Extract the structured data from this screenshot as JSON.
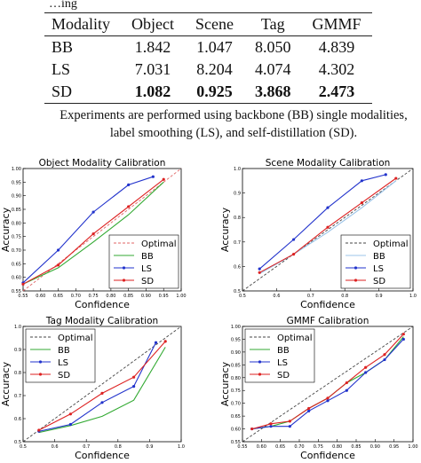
{
  "caption_top": "…ing",
  "table": {
    "headers": [
      "Modality",
      "Object",
      "Scene",
      "Tag",
      "GMMF"
    ],
    "rows": [
      {
        "cells": [
          "BB",
          "1.842",
          "1.047",
          "8.050",
          "4.839"
        ],
        "bold": false
      },
      {
        "cells": [
          "LS",
          "7.031",
          "8.204",
          "4.074",
          "4.302"
        ],
        "bold": false
      },
      {
        "cells": [
          "SD",
          "1.082",
          "0.925",
          "3.868",
          "2.473"
        ],
        "bold": true
      }
    ]
  },
  "caption": "Experiments are performed using backbone (BB) single modalities, label smoothing (LS), and self-distillation (SD).",
  "chart_data": [
    {
      "type": "line",
      "title": "Object Modality Calibration",
      "xlabel": "Confidence",
      "ylabel": "Accuracy",
      "xlim": [
        0.55,
        1.0
      ],
      "ylim": [
        0.55,
        1.0
      ],
      "xticks": [
        "0.55",
        "0.60",
        "0.65",
        "0.70",
        "0.75",
        "0.80",
        "0.85",
        "0.90",
        "0.95",
        "1.00"
      ],
      "yticks": [
        "0.55",
        "0.60",
        "0.65",
        "0.70",
        "0.75",
        "0.80",
        "0.85",
        "0.90",
        "0.95",
        "1.00"
      ],
      "legend_position": "lower-right",
      "series": [
        {
          "name": "Optimal",
          "color": "#e06666",
          "style": "dashed",
          "x": [
            0.55,
            1.0
          ],
          "y": [
            0.55,
            1.0
          ]
        },
        {
          "name": "BB",
          "color": "#33aa33",
          "style": "solid",
          "x": [
            0.55,
            0.65,
            0.75,
            0.85,
            0.95
          ],
          "y": [
            0.575,
            0.635,
            0.73,
            0.83,
            0.95
          ]
        },
        {
          "name": "LS",
          "color": "#2233cc",
          "style": "marker",
          "x": [
            0.55,
            0.65,
            0.75,
            0.85,
            0.92
          ],
          "y": [
            0.58,
            0.7,
            0.84,
            0.94,
            0.97
          ]
        },
        {
          "name": "SD",
          "color": "#dd2222",
          "style": "marker",
          "x": [
            0.55,
            0.65,
            0.75,
            0.85,
            0.95
          ],
          "y": [
            0.575,
            0.645,
            0.76,
            0.86,
            0.96
          ]
        }
      ]
    },
    {
      "type": "line",
      "title": "Scene Modality Calibration",
      "xlabel": "Confidence",
      "ylabel": "Accuracy",
      "xlim": [
        0.5,
        1.0
      ],
      "ylim": [
        0.5,
        1.0
      ],
      "xticks": [
        "0.5",
        "0.6",
        "0.7",
        "0.8",
        "0.9",
        "1.0"
      ],
      "yticks": [
        "0.5",
        "0.6",
        "0.7",
        "0.8",
        "0.9",
        "1.0"
      ],
      "legend_position": "lower-right",
      "series": [
        {
          "name": "Optimal",
          "color": "#444444",
          "style": "dashed",
          "x": [
            0.5,
            1.0
          ],
          "y": [
            0.5,
            1.0
          ]
        },
        {
          "name": "BB",
          "color": "#9bc4e8",
          "style": "solid",
          "x": [
            0.55,
            0.65,
            0.75,
            0.85,
            0.95
          ],
          "y": [
            0.57,
            0.65,
            0.74,
            0.84,
            0.95
          ]
        },
        {
          "name": "LS",
          "color": "#2233cc",
          "style": "marker",
          "x": [
            0.55,
            0.65,
            0.75,
            0.85,
            0.92
          ],
          "y": [
            0.59,
            0.71,
            0.84,
            0.95,
            0.975
          ]
        },
        {
          "name": "SD",
          "color": "#dd2222",
          "style": "marker",
          "x": [
            0.55,
            0.65,
            0.75,
            0.85,
            0.95
          ],
          "y": [
            0.575,
            0.65,
            0.76,
            0.86,
            0.96
          ]
        }
      ]
    },
    {
      "type": "line",
      "title": "Tag Modality Calibration",
      "xlabel": "Confidence",
      "ylabel": "Accuracy",
      "xlim": [
        0.5,
        1.0
      ],
      "ylim": [
        0.5,
        1.0
      ],
      "xticks": [
        "0.5",
        "0.6",
        "0.7",
        "0.8",
        "0.9",
        "1.0"
      ],
      "yticks": [
        "0.5",
        "0.6",
        "0.7",
        "0.8",
        "0.9",
        "1.0"
      ],
      "legend_position": "upper-left",
      "series": [
        {
          "name": "Optimal",
          "color": "#444444",
          "style": "dashed",
          "x": [
            0.5,
            1.0
          ],
          "y": [
            0.5,
            1.0
          ]
        },
        {
          "name": "BB",
          "color": "#33aa33",
          "style": "solid",
          "x": [
            0.55,
            0.65,
            0.75,
            0.85,
            0.95
          ],
          "y": [
            0.54,
            0.57,
            0.61,
            0.68,
            0.91
          ]
        },
        {
          "name": "LS",
          "color": "#2233cc",
          "style": "marker",
          "x": [
            0.55,
            0.65,
            0.75,
            0.85,
            0.92
          ],
          "y": [
            0.545,
            0.575,
            0.67,
            0.74,
            0.93
          ]
        },
        {
          "name": "SD",
          "color": "#dd2222",
          "style": "marker",
          "x": [
            0.55,
            0.65,
            0.75,
            0.85,
            0.95
          ],
          "y": [
            0.55,
            0.62,
            0.71,
            0.78,
            0.935
          ]
        }
      ]
    },
    {
      "type": "line",
      "title": "GMMF Calibration",
      "xlabel": "Confidence",
      "ylabel": "Accuracy",
      "xlim": [
        0.55,
        1.0
      ],
      "ylim": [
        0.55,
        1.0
      ],
      "xticks": [
        "0.55",
        "0.60",
        "0.65",
        "0.70",
        "0.75",
        "0.80",
        "0.85",
        "0.90",
        "0.95",
        "1.00"
      ],
      "yticks": [
        "0.55",
        "0.60",
        "0.65",
        "0.70",
        "0.75",
        "0.80",
        "0.85",
        "0.90",
        "0.95",
        "1.00"
      ],
      "legend_position": "upper-left",
      "series": [
        {
          "name": "Optimal",
          "color": "#444444",
          "style": "dashed",
          "x": [
            0.55,
            1.0
          ],
          "y": [
            0.55,
            1.0
          ]
        },
        {
          "name": "BB",
          "color": "#33aa33",
          "style": "solid",
          "x": [
            0.575,
            0.625,
            0.675,
            0.725,
            0.775,
            0.825,
            0.875,
            0.925,
            0.975
          ],
          "y": [
            0.6,
            0.61,
            0.63,
            0.68,
            0.72,
            0.78,
            0.82,
            0.87,
            0.96
          ]
        },
        {
          "name": "LS",
          "color": "#2233cc",
          "style": "marker",
          "x": [
            0.575,
            0.625,
            0.675,
            0.725,
            0.775,
            0.825,
            0.875,
            0.925,
            0.975
          ],
          "y": [
            0.6,
            0.61,
            0.61,
            0.67,
            0.71,
            0.75,
            0.82,
            0.87,
            0.95
          ]
        },
        {
          "name": "SD",
          "color": "#dd2222",
          "style": "marker",
          "x": [
            0.575,
            0.625,
            0.675,
            0.725,
            0.775,
            0.825,
            0.875,
            0.925,
            0.975
          ],
          "y": [
            0.6,
            0.62,
            0.63,
            0.68,
            0.72,
            0.78,
            0.84,
            0.89,
            0.97
          ]
        }
      ]
    }
  ]
}
